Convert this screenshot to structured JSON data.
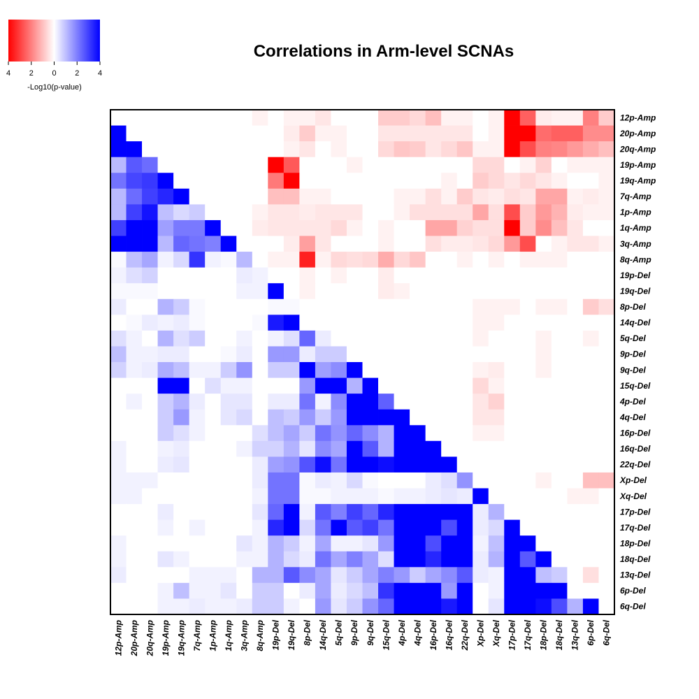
{
  "chart_data": {
    "type": "heatmap",
    "title": "Correlations in Arm-level SCNAs",
    "rows": [
      "12p-Amp",
      "20p-Amp",
      "20q-Amp",
      "19p-Amp",
      "19q-Amp",
      "7q-Amp",
      "1p-Amp",
      "1q-Amp",
      "3q-Amp",
      "8q-Amp",
      "19p-Del",
      "19q-Del",
      "8p-Del",
      "14q-Del",
      "5q-Del",
      "9p-Del",
      "9q-Del",
      "15q-Del",
      "4p-Del",
      "4q-Del",
      "16p-Del",
      "16q-Del",
      "22q-Del",
      "Xp-Del",
      "Xq-Del",
      "17p-Del",
      "17q-Del",
      "18p-Del",
      "18q-Del",
      "13q-Del",
      "6p-Del",
      "6q-Del"
    ],
    "columns": [
      "12p-Amp",
      "20p-Amp",
      "20q-Amp",
      "19p-Amp",
      "19q-Amp",
      "7q-Amp",
      "1p-Amp",
      "1q-Amp",
      "3q-Amp",
      "8q-Amp",
      "19p-Del",
      "19q-Del",
      "8p-Del",
      "14q-Del",
      "5q-Del",
      "9p-Del",
      "9q-Del",
      "15q-Del",
      "4p-Del",
      "4q-Del",
      "16p-Del",
      "16q-Del",
      "22q-Del",
      "Xp-Del",
      "Xq-Del",
      "17p-Del",
      "17q-Del",
      "18p-Del",
      "18q-Del",
      "13q-Del",
      "6p-Del",
      "6q-Del"
    ],
    "value_label": "signed -log10(p-value); negative = red (upper triangle), positive = blue (lower triangle)",
    "values": [
      [
        0,
        0,
        0,
        0,
        0,
        0,
        0,
        0,
        0,
        -0.2,
        0,
        -0.2,
        -0.2,
        -0.4,
        0,
        0,
        0,
        -0.8,
        -0.8,
        -0.6,
        -1.0,
        -0.2,
        -0.2,
        0,
        -0.2,
        -4,
        -2.5,
        -0.3,
        -0.2,
        -0.2,
        -2.0,
        -0.8
      ],
      [
        4,
        0,
        0,
        0,
        0,
        0,
        0,
        0,
        0,
        0,
        0,
        -0.3,
        -0.8,
        -0.2,
        -0.2,
        0,
        0,
        -0.4,
        -0.4,
        -0.4,
        -0.4,
        -0.4,
        -0.4,
        0,
        -0.2,
        -4,
        -4,
        -2.3,
        -2.5,
        -2.5,
        -1.8,
        -1.8
      ],
      [
        4,
        4,
        0,
        0,
        0,
        0,
        0,
        0,
        0,
        0,
        0,
        -0.2,
        -0.4,
        0,
        -0.2,
        0,
        0,
        -0.6,
        -0.9,
        -0.8,
        -0.4,
        -0.6,
        -0.9,
        -0.2,
        -0.2,
        -4,
        -2.8,
        -2.0,
        -1.9,
        -1.6,
        -1.3,
        -1.0
      ],
      [
        1.1,
        2.6,
        2.3,
        0,
        0,
        0,
        0,
        0,
        0,
        0,
        -4,
        -2.6,
        0,
        0,
        0,
        -0.2,
        0,
        0,
        0,
        0,
        0,
        0,
        0,
        -0.6,
        -0.6,
        0,
        -0.2,
        -0.7,
        0,
        -0.2,
        -0.2,
        -0.2
      ],
      [
        2.2,
        2.9,
        3.1,
        4,
        0,
        0,
        0,
        0,
        0,
        0,
        -2.1,
        -4,
        0,
        0,
        0,
        0,
        0,
        0,
        0,
        0,
        0,
        -0.2,
        0,
        -0.8,
        -0.6,
        -0.4,
        -0.6,
        -0.4,
        -0.2,
        0,
        0,
        -0.2
      ],
      [
        1.1,
        2.3,
        3.0,
        3.4,
        4,
        0,
        0,
        0,
        0,
        0,
        -1.0,
        -1.0,
        -0.2,
        -0.2,
        0,
        0,
        0,
        0,
        -0.2,
        -0.2,
        -0.5,
        -0.2,
        -0.8,
        -0.4,
        -0.3,
        -0.5,
        -0.4,
        -1.4,
        -1.4,
        -0.2,
        -0.3,
        -0.2
      ],
      [
        1.1,
        3.0,
        3.7,
        1.0,
        0.6,
        0.8,
        0,
        0,
        0,
        -0.2,
        -0.4,
        -0.4,
        -0.3,
        -0.4,
        -0.4,
        -0.4,
        0,
        0,
        -0.2,
        -0.5,
        -0.5,
        -0.5,
        -0.5,
        -1.4,
        -0.5,
        -2.8,
        -0.8,
        -1.6,
        -1.2,
        -0.3,
        -0.2,
        -0.2
      ],
      [
        3.0,
        4,
        4,
        1.5,
        2.1,
        2.1,
        4,
        0,
        0,
        -0.3,
        -0.4,
        -0.4,
        -0.4,
        -0.4,
        -0.6,
        -0.2,
        0,
        -0.2,
        0,
        0,
        -1.4,
        -1.4,
        -0.7,
        -0.5,
        -0.5,
        -4,
        -0.8,
        -1.8,
        -1.0,
        -0.4,
        0,
        0
      ],
      [
        4,
        4,
        4,
        1.1,
        2.4,
        2.2,
        2.0,
        4,
        0,
        0,
        0,
        -0.3,
        -1.5,
        -0.4,
        0,
        0,
        0,
        -0.2,
        0,
        0,
        -0.5,
        -0.3,
        -0.3,
        -0.4,
        -0.6,
        -1.6,
        -2.8,
        0,
        -0.2,
        -0.4,
        -0.4,
        -0.2
      ],
      [
        0.1,
        1.0,
        1.4,
        0.2,
        0.6,
        3.2,
        0.2,
        0.1,
        1.1,
        0,
        -0.2,
        -0.2,
        -3.5,
        -0.2,
        -0.6,
        -0.5,
        -0.6,
        -1.3,
        -0.6,
        -0.9,
        0,
        0,
        -0.2,
        0,
        -0.2,
        0,
        -0.2,
        -0.2,
        -0.2,
        0,
        0,
        0
      ],
      [
        0.2,
        0.5,
        0.7,
        0,
        0,
        0,
        0,
        0,
        0.3,
        0.2,
        0,
        0,
        -0.2,
        0,
        -0.2,
        0,
        0,
        -0.3,
        0,
        0,
        0,
        0,
        0,
        0,
        0,
        0,
        0,
        0,
        0,
        0,
        0,
        0
      ],
      [
        0.1,
        0.1,
        0.1,
        0,
        0,
        0,
        0,
        0,
        0.2,
        0.2,
        4,
        0,
        -0.2,
        0,
        0,
        0,
        0,
        -0.3,
        -0.2,
        0,
        0,
        0,
        0,
        0,
        0,
        0,
        0,
        0,
        0,
        0,
        0,
        0
      ],
      [
        0.3,
        0,
        0,
        1.2,
        0.8,
        0.1,
        0,
        0,
        0,
        0,
        0.1,
        0.1,
        0,
        0,
        0,
        0,
        0,
        0,
        0,
        0,
        0,
        0,
        0,
        -0.2,
        -0.2,
        -0.2,
        0,
        -0.2,
        -0.2,
        0,
        -0.8,
        -0.5
      ],
      [
        0,
        0.1,
        0.3,
        0.2,
        0.3,
        0.1,
        0,
        0,
        0,
        0.1,
        3.6,
        4,
        0,
        0,
        0,
        0,
        0,
        0,
        0,
        0,
        0,
        0,
        0,
        -0.2,
        -0.2,
        0,
        0,
        0,
        0,
        0,
        0,
        0
      ],
      [
        0.5,
        0.2,
        0,
        1.2,
        0.5,
        0.8,
        0,
        0,
        0.2,
        0,
        0.2,
        0.5,
        2.4,
        0.3,
        0,
        0,
        0,
        0,
        0,
        0,
        0,
        0,
        0,
        -0.2,
        0,
        0,
        0,
        -0.2,
        0,
        0,
        -0.2,
        0
      ],
      [
        1.0,
        0.2,
        0.2,
        0.3,
        0.3,
        0,
        0,
        0.1,
        0.3,
        0,
        1.6,
        1.6,
        0.3,
        0.8,
        0.8,
        0,
        0,
        0,
        0,
        0,
        0,
        0,
        0,
        0,
        0,
        0,
        0,
        -0.2,
        0,
        0,
        0,
        0
      ],
      [
        0.7,
        0.2,
        0.3,
        1.3,
        1.0,
        0.2,
        0.2,
        0.8,
        1.7,
        0,
        0.8,
        0.8,
        4,
        1.5,
        1.8,
        4,
        0,
        0,
        0,
        0,
        0,
        0,
        0,
        -0.2,
        -0.3,
        0,
        0,
        -0.2,
        0,
        0,
        0,
        0
      ],
      [
        0,
        0,
        0,
        4,
        4,
        0,
        0.5,
        0.2,
        0.2,
        0,
        0,
        0,
        1.6,
        4,
        4,
        1.2,
        4,
        0,
        0,
        0,
        0,
        0,
        0,
        -0.6,
        -0.2,
        0,
        0,
        0,
        0,
        0,
        0,
        0
      ],
      [
        0,
        0.2,
        0,
        0.8,
        1.2,
        0.3,
        0,
        0.4,
        0.4,
        0,
        0.3,
        0.3,
        2.2,
        0.2,
        1.8,
        4,
        4,
        2.5,
        0,
        0,
        0,
        0,
        0,
        -0.4,
        -0.7,
        0,
        0,
        0,
        0,
        0,
        0,
        0
      ],
      [
        0,
        0,
        0,
        0.8,
        1.6,
        0.2,
        0,
        0.4,
        0.6,
        0,
        1.0,
        0.8,
        1.6,
        0.8,
        1.6,
        4,
        4,
        4,
        4,
        0,
        0,
        0,
        0,
        -0.4,
        -0.4,
        0,
        0,
        0,
        0,
        0,
        0,
        0
      ],
      [
        0,
        0,
        0,
        0.8,
        0.5,
        0.2,
        0,
        0,
        0,
        0.5,
        1.0,
        1.4,
        0.8,
        2.2,
        1.7,
        2.4,
        1.8,
        1.2,
        4,
        4,
        0,
        0,
        0,
        -0.2,
        -0.2,
        0,
        0,
        0,
        0,
        0,
        0,
        0
      ],
      [
        0.2,
        0,
        0,
        0.2,
        0.3,
        0,
        0,
        0,
        0.2,
        0.7,
        0.7,
        1.2,
        0.4,
        1.8,
        1.4,
        4,
        2.6,
        1.2,
        4,
        4,
        4,
        0,
        0,
        0,
        0,
        0,
        0,
        0,
        0,
        0,
        0,
        0
      ],
      [
        0.2,
        0,
        0,
        0.3,
        0.4,
        0,
        0,
        0,
        0,
        0.3,
        1.5,
        1.7,
        2.7,
        3.8,
        2.2,
        4,
        4,
        3.8,
        4,
        4,
        4,
        4,
        0,
        0,
        0,
        0,
        0,
        0,
        0,
        0,
        0,
        0
      ],
      [
        0.2,
        0.2,
        0.2,
        0,
        0,
        0,
        0,
        0,
        0,
        0.3,
        2.2,
        2.2,
        0.1,
        0.3,
        0.2,
        0.6,
        0.1,
        0,
        0,
        0,
        0.3,
        0.5,
        1.7,
        0,
        0,
        0,
        0,
        -0.2,
        0,
        0,
        -1.0,
        -1.0
      ],
      [
        0.2,
        0.2,
        0,
        0,
        0,
        0,
        0,
        0,
        0,
        0.2,
        2.2,
        2.2,
        0.1,
        0.1,
        0.2,
        0.2,
        0.2,
        0.1,
        0.2,
        0.2,
        0.3,
        0.4,
        0.3,
        4,
        0,
        0,
        0,
        0,
        0,
        -0.2,
        -0.2,
        0
      ],
      [
        0,
        0,
        0,
        0.3,
        0,
        0,
        0,
        0,
        0,
        0.4,
        2.4,
        4,
        0.2,
        2.6,
        2.0,
        3.0,
        2.4,
        3.4,
        4,
        4,
        4,
        4,
        4,
        0.3,
        1.2,
        0,
        0,
        0,
        0,
        0,
        0,
        0
      ],
      [
        0,
        0,
        0,
        0.2,
        0,
        0.2,
        0,
        0,
        0,
        0.2,
        3.4,
        4,
        0.6,
        2.2,
        4,
        2.6,
        3.0,
        2.2,
        4,
        4,
        4,
        2.8,
        4,
        0.3,
        0.6,
        4,
        0,
        0,
        0,
        0,
        0,
        0
      ],
      [
        0.2,
        0,
        0,
        0,
        0,
        0,
        0,
        0,
        0.4,
        0.2,
        1.2,
        0.8,
        0.2,
        1.4,
        0.2,
        0.2,
        0.4,
        1.6,
        4,
        4,
        2.8,
        4,
        4,
        0.2,
        1.0,
        4,
        4,
        0,
        0,
        0,
        0,
        0
      ],
      [
        0.2,
        0,
        0,
        0.4,
        0.2,
        0,
        0,
        0,
        0.2,
        0.2,
        1.2,
        0.6,
        0.3,
        2.2,
        1.4,
        2.0,
        1.4,
        0.5,
        4,
        4,
        3.4,
        4,
        4,
        0.3,
        1.2,
        4,
        2.6,
        4,
        0,
        0,
        0,
        0
      ],
      [
        0.3,
        0,
        0,
        0,
        0,
        0.2,
        0.2,
        0.2,
        0,
        1.2,
        1.2,
        2.6,
        1.8,
        1.4,
        0.4,
        0.8,
        1.4,
        2.0,
        1.6,
        0.8,
        1.4,
        1.8,
        2.6,
        0.3,
        0.2,
        4,
        4,
        1.0,
        0.8,
        0,
        -0.5,
        0
      ],
      [
        0,
        0,
        0,
        0.2,
        1.0,
        0.2,
        0.2,
        0.4,
        0,
        0.8,
        0.8,
        0,
        0.3,
        1.4,
        0.3,
        0.6,
        1.0,
        3.2,
        4,
        4,
        4,
        1.6,
        4,
        0,
        0.2,
        4,
        4,
        4,
        4,
        0,
        0,
        0
      ],
      [
        0,
        0,
        0,
        0.2,
        0.2,
        0.3,
        0.2,
        0.2,
        0.3,
        0.8,
        0.8,
        0.2,
        0,
        1.6,
        0.4,
        0.8,
        1.7,
        2.4,
        4,
        4,
        4,
        3.6,
        4,
        0,
        0.4,
        4,
        4,
        3.8,
        2.8,
        1.2,
        4,
        0
      ]
    ],
    "legend": {
      "label": "-Log10(p-value)",
      "ticks": [
        "4",
        "2",
        "0",
        "2",
        "4"
      ],
      "min": -4,
      "max": 4
    },
    "colors": {
      "negative": "#ff0000",
      "zero": "#ffffff",
      "positive": "#0000ff"
    }
  }
}
